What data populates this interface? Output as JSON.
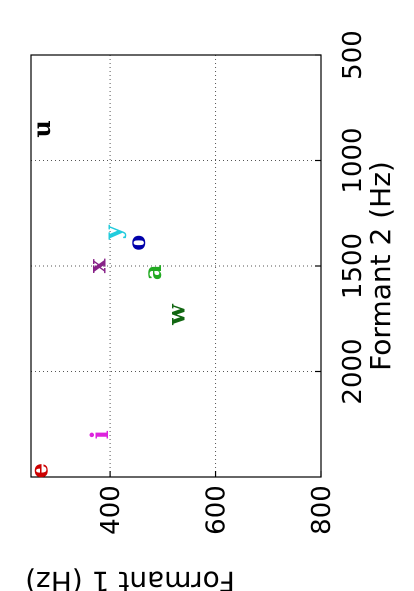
{
  "chart_data": {
    "type": "scatter",
    "title": "",
    "xlabel": "Formant 1 (Hz)",
    "ylabel": "Formant 2 (Hz)",
    "xlim": [
      250,
      800
    ],
    "ylim": [
      500,
      2500
    ],
    "x_ticks": [
      400,
      600,
      800
    ],
    "y_ticks": [
      500,
      1000,
      1500,
      2000
    ],
    "x_tick_labels": [
      "400",
      "600",
      "800"
    ],
    "y_tick_labels": [
      "500",
      "1000",
      "1500",
      "2000"
    ],
    "grid": true,
    "rotated": "figure rotated 90 degrees counter-clockwise",
    "points": [
      {
        "label": "e",
        "x": 265,
        "y": 2470,
        "color": "#cc0000"
      },
      {
        "label": "i",
        "x": 380,
        "y": 2300,
        "color": "#dd22dd"
      },
      {
        "label": "x",
        "x": 375,
        "y": 1500,
        "color": "#882288"
      },
      {
        "label": "y",
        "x": 405,
        "y": 1340,
        "color": "#22ccdd"
      },
      {
        "label": "o",
        "x": 450,
        "y": 1390,
        "color": "#0000aa"
      },
      {
        "label": "a",
        "x": 480,
        "y": 1530,
        "color": "#22aa22"
      },
      {
        "label": "w",
        "x": 525,
        "y": 1730,
        "color": "#116611"
      },
      {
        "label": "u",
        "x": 270,
        "y": 850,
        "color": "#000000"
      }
    ]
  }
}
